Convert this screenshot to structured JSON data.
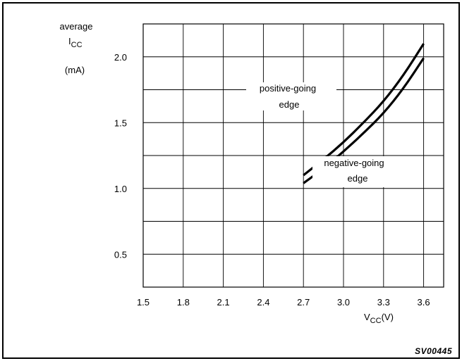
{
  "chart_data": {
    "type": "line",
    "xlabel": {
      "main": "V",
      "sub": "CC",
      "unit": "(V)"
    },
    "ylabel": {
      "line1": "average",
      "main": "I",
      "sub": "CC",
      "line3": "(mA)"
    },
    "xlim": [
      1.5,
      3.75
    ],
    "ylim": [
      0.25,
      2.25
    ],
    "x_ticks": [
      {
        "value": 1.5,
        "label": "1.5"
      },
      {
        "value": 1.8,
        "label": "1.8"
      },
      {
        "value": 2.1,
        "label": "2.1"
      },
      {
        "value": 2.4,
        "label": "2.4"
      },
      {
        "value": 2.7,
        "label": "2.7"
      },
      {
        "value": 3.0,
        "label": "3.0"
      },
      {
        "value": 3.3,
        "label": "3.3"
      },
      {
        "value": 3.6,
        "label": "3.6"
      }
    ],
    "y_ticks": [
      {
        "value": 0.5,
        "label": "0.5"
      },
      {
        "value": 1.0,
        "label": "1.0"
      },
      {
        "value": 1.5,
        "label": "1.5"
      },
      {
        "value": 2.0,
        "label": "2.0"
      }
    ],
    "grid": true,
    "series": [
      {
        "name": "positive-going edge",
        "x": [
          2.7,
          2.85,
          3.0,
          3.15,
          3.3,
          3.45,
          3.6
        ],
        "y": [
          1.1,
          1.22,
          1.35,
          1.5,
          1.66,
          1.86,
          2.1
        ]
      },
      {
        "name": "negative-going edge",
        "x": [
          2.7,
          2.85,
          3.0,
          3.15,
          3.3,
          3.45,
          3.6
        ],
        "y": [
          1.04,
          1.15,
          1.28,
          1.42,
          1.57,
          1.76,
          1.99
        ]
      }
    ],
    "annotations": [
      {
        "line1": "positive-going",
        "line2": "edge"
      },
      {
        "line1": "negative-going",
        "line2": "edge"
      }
    ],
    "figure_code": "SV00445"
  }
}
